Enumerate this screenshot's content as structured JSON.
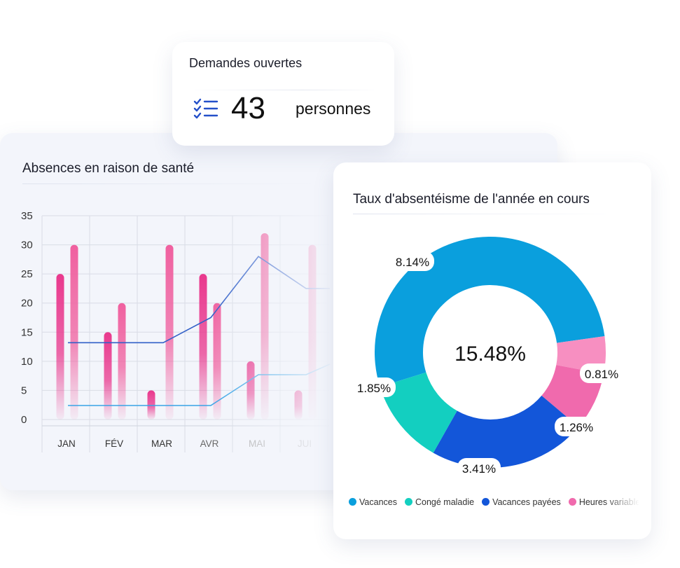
{
  "requests_card": {
    "title": "Demandes ouvertes",
    "count": "43",
    "unit": "personnes",
    "icon": "checklist-icon",
    "icon_color": "#2450c9"
  },
  "chart_data": [
    {
      "type": "bar",
      "title": "Absences en raison de santé",
      "categories": [
        "JAN",
        "FÉV",
        "MAR",
        "AVR",
        "MAI",
        "JUI"
      ],
      "ylim": [
        0,
        35
      ],
      "yticks": [
        0,
        5,
        10,
        15,
        20,
        25,
        30,
        35
      ],
      "grid": true,
      "series": [
        {
          "values": [
            25,
            15,
            5,
            25,
            10,
            5
          ],
          "color": "#e9388d"
        },
        {
          "values": [
            30,
            20,
            30,
            20,
            32,
            30
          ],
          "color": "#f0609f"
        }
      ],
      "lines": [
        {
          "x": [
            0,
            1,
            2,
            3,
            4,
            5,
            5.5
          ],
          "values": [
            13.2,
            13.2,
            13.2,
            17.5,
            28,
            22.5,
            22.5
          ],
          "color": "#3260c8"
        },
        {
          "x": [
            0,
            1,
            2,
            3,
            4,
            5,
            5.5
          ],
          "values": [
            2.4,
            2.4,
            2.4,
            2.4,
            7.7,
            7.7,
            9.5
          ],
          "color": "#39a4e6"
        }
      ]
    },
    {
      "type": "pie",
      "title": "Taux d'absentéisme de l'année en cours",
      "center_label": "15.48%",
      "slices": [
        {
          "label": "Vacances",
          "value": 8.14,
          "display": "8.14%",
          "color": "#0a9fdd"
        },
        {
          "label": "",
          "value": 0.81,
          "display": "0.81%",
          "color": "#f78fc1"
        },
        {
          "label": "Heures variables",
          "value": 1.26,
          "display": "1.26%",
          "color": "#f06aad"
        },
        {
          "label": "Vacances payées",
          "value": 3.41,
          "display": "3.41%",
          "color": "#1356d9"
        },
        {
          "label": "Congé maladie",
          "value": 1.85,
          "display": "1.85%",
          "color": "#13cfc0"
        }
      ],
      "legend": [
        {
          "label": "Vacances",
          "color": "#0a9fdd"
        },
        {
          "label": "Congé maladie",
          "color": "#13cfc0"
        },
        {
          "label": "Vacances payées",
          "color": "#1356d9"
        },
        {
          "label": "Heures variables",
          "color": "#f06aad"
        }
      ]
    }
  ]
}
